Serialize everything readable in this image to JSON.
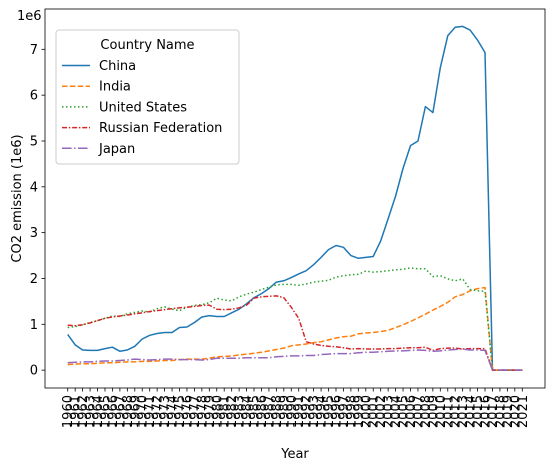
{
  "chart_data": {
    "type": "line",
    "title": "",
    "xlabel": "Year",
    "ylabel": "CO2 emission (1e6)",
    "y_offset_label": "1e6",
    "legend_title": "Country Name",
    "legend_position": "upper-left",
    "xlim": [
      1960,
      2021
    ],
    "ylim": [
      0,
      7.8
    ],
    "y_ticks": [
      "0",
      "1",
      "2",
      "3",
      "4",
      "5",
      "6",
      "7"
    ],
    "x_ticks": [
      "1960",
      "1961",
      "1962",
      "1963",
      "1964",
      "1965",
      "1966",
      "1967",
      "1968",
      "1969",
      "1970",
      "1971",
      "1972",
      "1973",
      "1974",
      "1975",
      "1976",
      "1977",
      "1978",
      "1979",
      "1980",
      "1981",
      "1982",
      "1983",
      "1984",
      "1985",
      "1986",
      "1987",
      "1988",
      "1989",
      "1990",
      "1991",
      "1992",
      "1993",
      "1994",
      "1995",
      "1996",
      "1997",
      "1998",
      "1999",
      "2000",
      "2001",
      "2002",
      "2003",
      "2004",
      "2005",
      "2006",
      "2007",
      "2008",
      "2009",
      "2010",
      "2011",
      "2012",
      "2013",
      "2014",
      "2015",
      "2016",
      "2017",
      "2018",
      "2019",
      "2020",
      "2021"
    ],
    "grid": false,
    "series": [
      {
        "name": "China",
        "color": "#1f77b4",
        "dash": "solid",
        "x": [
          1960,
          1961,
          1962,
          1963,
          1964,
          1965,
          1966,
          1967,
          1968,
          1969,
          1970,
          1971,
          1972,
          1973,
          1974,
          1975,
          1976,
          1977,
          1978,
          1979,
          1980,
          1981,
          1982,
          1983,
          1984,
          1985,
          1986,
          1987,
          1988,
          1989,
          1990,
          1991,
          1992,
          1993,
          1994,
          1995,
          1996,
          1997,
          1998,
          1999,
          2000,
          2001,
          2002,
          2003,
          2004,
          2005,
          2006,
          2007,
          2008,
          2009,
          2010,
          2011,
          2012,
          2013,
          2014,
          2015,
          2016,
          2017,
          2018,
          2019,
          2020,
          2021
        ],
        "values": [
          0.78,
          0.55,
          0.44,
          0.43,
          0.43,
          0.47,
          0.5,
          0.41,
          0.44,
          0.52,
          0.68,
          0.76,
          0.8,
          0.82,
          0.82,
          0.93,
          0.94,
          1.04,
          1.16,
          1.19,
          1.17,
          1.17,
          1.25,
          1.33,
          1.45,
          1.58,
          1.67,
          1.78,
          1.92,
          1.95,
          2.02,
          2.1,
          2.17,
          2.3,
          2.46,
          2.63,
          2.72,
          2.68,
          2.5,
          2.44,
          2.46,
          2.48,
          2.82,
          3.3,
          3.8,
          4.4,
          4.9,
          5.0,
          5.75,
          5.62,
          6.6,
          7.3,
          7.48,
          7.5,
          7.42,
          7.2,
          6.93,
          0,
          0,
          0,
          0,
          0
        ]
      },
      {
        "name": "India",
        "color": "#ff7f0e",
        "dash": "dashed",
        "x": [
          1960,
          1961,
          1962,
          1963,
          1964,
          1965,
          1966,
          1967,
          1968,
          1969,
          1970,
          1971,
          1972,
          1973,
          1974,
          1975,
          1976,
          1977,
          1978,
          1979,
          1980,
          1981,
          1982,
          1983,
          1984,
          1985,
          1986,
          1987,
          1988,
          1989,
          1990,
          1991,
          1992,
          1993,
          1994,
          1995,
          1996,
          1997,
          1998,
          1999,
          2000,
          2001,
          2002,
          2003,
          2004,
          2005,
          2006,
          2007,
          2008,
          2009,
          2010,
          2011,
          2012,
          2013,
          2014,
          2015,
          2016,
          2017,
          2018,
          2019,
          2020,
          2021
        ],
        "values": [
          0.12,
          0.13,
          0.14,
          0.14,
          0.15,
          0.16,
          0.16,
          0.17,
          0.18,
          0.18,
          0.19,
          0.19,
          0.2,
          0.21,
          0.21,
          0.23,
          0.24,
          0.24,
          0.24,
          0.26,
          0.29,
          0.3,
          0.31,
          0.33,
          0.35,
          0.37,
          0.39,
          0.42,
          0.45,
          0.48,
          0.53,
          0.55,
          0.57,
          0.6,
          0.62,
          0.66,
          0.7,
          0.73,
          0.74,
          0.79,
          0.81,
          0.82,
          0.84,
          0.87,
          0.93,
          0.99,
          1.06,
          1.14,
          1.22,
          1.31,
          1.39,
          1.48,
          1.6,
          1.65,
          1.73,
          1.78,
          1.8,
          0,
          0,
          0,
          0,
          0
        ]
      },
      {
        "name": "United States",
        "color": "#2ca02c",
        "dash": "dotted",
        "x": [
          1960,
          1961,
          1962,
          1963,
          1964,
          1965,
          1966,
          1967,
          1968,
          1969,
          1970,
          1971,
          1972,
          1973,
          1974,
          1975,
          1976,
          1977,
          1978,
          1979,
          1980,
          1981,
          1982,
          1983,
          1984,
          1985,
          1986,
          1987,
          1988,
          1989,
          1990,
          1991,
          1992,
          1993,
          1994,
          1995,
          1996,
          1997,
          1998,
          1999,
          2000,
          2001,
          2002,
          2003,
          2004,
          2005,
          2006,
          2007,
          2008,
          2009,
          2010,
          2011,
          2012,
          2013,
          2014,
          2015,
          2016,
          2017,
          2018,
          2019,
          2020,
          2021
        ],
        "values": [
          0.93,
          0.95,
          0.99,
          1.04,
          1.08,
          1.13,
          1.18,
          1.17,
          1.23,
          1.26,
          1.29,
          1.27,
          1.34,
          1.38,
          1.33,
          1.3,
          1.37,
          1.41,
          1.43,
          1.47,
          1.57,
          1.53,
          1.51,
          1.6,
          1.66,
          1.7,
          1.76,
          1.81,
          1.86,
          1.87,
          1.87,
          1.85,
          1.88,
          1.92,
          1.94,
          1.96,
          2.03,
          2.06,
          2.08,
          2.09,
          2.16,
          2.14,
          2.15,
          2.17,
          2.19,
          2.2,
          2.23,
          2.21,
          2.21,
          2.04,
          2.06,
          1.99,
          1.95,
          1.99,
          1.76,
          1.73,
          1.72,
          0,
          0,
          0,
          0,
          0
        ]
      },
      {
        "name": "Russian Federation",
        "color": "#d62728",
        "dash": "dashdot-fine",
        "x": [
          1960,
          1961,
          1962,
          1963,
          1964,
          1965,
          1966,
          1967,
          1968,
          1969,
          1970,
          1971,
          1972,
          1973,
          1974,
          1975,
          1976,
          1977,
          1978,
          1979,
          1980,
          1981,
          1982,
          1983,
          1984,
          1985,
          1986,
          1987,
          1988,
          1989,
          1990,
          1991,
          1992,
          1993,
          1994,
          1995,
          1996,
          1997,
          1998,
          1999,
          2000,
          2001,
          2002,
          2003,
          2004,
          2005,
          2006,
          2007,
          2008,
          2009,
          2010,
          2011,
          2012,
          2013,
          2014,
          2015,
          2016,
          2017,
          2018,
          2019,
          2020,
          2021
        ],
        "values": [
          0.98,
          0.97,
          0.99,
          1.03,
          1.08,
          1.13,
          1.16,
          1.18,
          1.2,
          1.23,
          1.25,
          1.28,
          1.3,
          1.32,
          1.34,
          1.36,
          1.37,
          1.39,
          1.41,
          1.42,
          1.33,
          1.32,
          1.33,
          1.36,
          1.42,
          1.57,
          1.6,
          1.61,
          1.62,
          1.58,
          1.37,
          1.13,
          0.62,
          0.57,
          0.54,
          0.52,
          0.51,
          0.49,
          0.46,
          0.47,
          0.46,
          0.46,
          0.46,
          0.47,
          0.47,
          0.48,
          0.49,
          0.49,
          0.5,
          0.43,
          0.47,
          0.48,
          0.48,
          0.46,
          0.47,
          0.47,
          0.47,
          0,
          0,
          0,
          0,
          0
        ]
      },
      {
        "name": "Japan",
        "color": "#9467bd",
        "dash": "dashdot",
        "x": [
          1960,
          1961,
          1962,
          1963,
          1964,
          1965,
          1966,
          1967,
          1968,
          1969,
          1970,
          1971,
          1972,
          1973,
          1974,
          1975,
          1976,
          1977,
          1978,
          1979,
          1980,
          1981,
          1982,
          1983,
          1984,
          1985,
          1986,
          1987,
          1988,
          1989,
          1990,
          1991,
          1992,
          1993,
          1994,
          1995,
          1996,
          1997,
          1998,
          1999,
          2000,
          2001,
          2002,
          2003,
          2004,
          2005,
          2006,
          2007,
          2008,
          2009,
          2010,
          2011,
          2012,
          2013,
          2014,
          2015,
          2016,
          2017,
          2018,
          2019,
          2020,
          2021
        ],
        "values": [
          0.16,
          0.17,
          0.18,
          0.18,
          0.19,
          0.2,
          0.2,
          0.21,
          0.22,
          0.24,
          0.23,
          0.22,
          0.23,
          0.24,
          0.24,
          0.23,
          0.23,
          0.23,
          0.22,
          0.23,
          0.26,
          0.26,
          0.26,
          0.26,
          0.27,
          0.27,
          0.27,
          0.27,
          0.29,
          0.3,
          0.31,
          0.31,
          0.32,
          0.32,
          0.34,
          0.35,
          0.36,
          0.36,
          0.36,
          0.38,
          0.39,
          0.39,
          0.4,
          0.41,
          0.42,
          0.42,
          0.43,
          0.44,
          0.43,
          0.41,
          0.42,
          0.44,
          0.45,
          0.46,
          0.44,
          0.44,
          0.43,
          0,
          0,
          0,
          0,
          0
        ]
      }
    ]
  }
}
